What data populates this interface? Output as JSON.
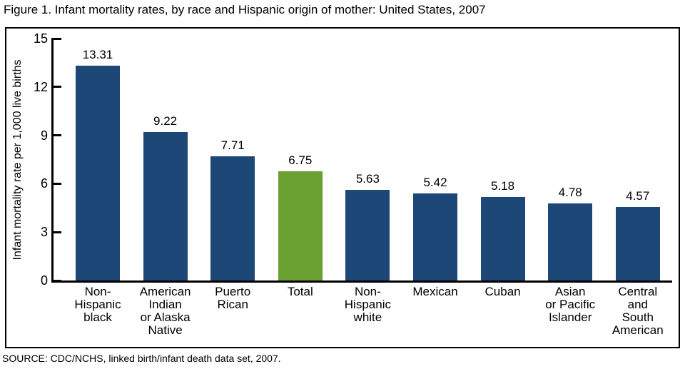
{
  "title": "Figure 1. Infant mortality rates, by race and Hispanic origin of mother: United States, 2007",
  "source": "SOURCE: CDC/NCHS, linked birth/infant death data set, 2007.",
  "colors": {
    "bar_default": "#1D4777",
    "bar_highlight": "#6BA133",
    "axis": "#000000",
    "text": "#000000"
  },
  "chart_data": {
    "type": "bar",
    "title": "Figure 1. Infant mortality rates, by race and Hispanic origin of mother: United States, 2007",
    "categories": [
      "Non-Hispanic black",
      "American Indian or Alaska Native",
      "Puerto Rican",
      "Total",
      "Non-Hispanic white",
      "Mexican",
      "Cuban",
      "Asian or Pacific Islander",
      "Central and South American"
    ],
    "category_lines": [
      [
        "Non-",
        "Hispanic",
        "black"
      ],
      [
        "American",
        "Indian",
        "or Alaska",
        "Native"
      ],
      [
        "Puerto",
        "Rican"
      ],
      [
        "Total"
      ],
      [
        "Non-",
        "Hispanic",
        "white"
      ],
      [
        "Mexican"
      ],
      [
        "Cuban"
      ],
      [
        "Asian",
        "or Pacific",
        "Islander"
      ],
      [
        "Central",
        "and",
        "South",
        "American"
      ]
    ],
    "values": [
      13.31,
      9.22,
      7.71,
      6.75,
      5.63,
      5.42,
      5.18,
      4.78,
      4.57
    ],
    "value_labels": [
      "13.31",
      "9.22",
      "7.71",
      "6.75",
      "5.63",
      "5.42",
      "5.18",
      "4.78",
      "4.57"
    ],
    "bar_colors": [
      "#1D4777",
      "#1D4777",
      "#1D4777",
      "#6BA133",
      "#1D4777",
      "#1D4777",
      "#1D4777",
      "#1D4777",
      "#1D4777"
    ],
    "highlight_index": 3,
    "xlabel": "",
    "ylabel": "Infant mortality rate per 1,000 live births",
    "ylim": [
      0,
      15
    ],
    "yticks": [
      0,
      3,
      6,
      9,
      12,
      15
    ],
    "grid": false,
    "legend": null
  }
}
